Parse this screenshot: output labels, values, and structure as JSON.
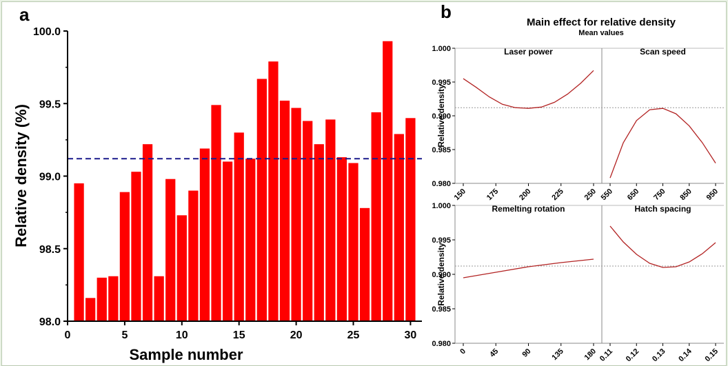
{
  "chart_data": [
    {
      "panel_label": "a",
      "type": "bar",
      "xlabel": "Sample number",
      "ylabel": "Relative density (%)",
      "xlim": [
        0,
        31
      ],
      "ylim": [
        98.0,
        100.0
      ],
      "xticks": [
        "0",
        "5",
        "10",
        "15",
        "20",
        "25",
        "30"
      ],
      "yticks": [
        "98.0",
        "98.5",
        "99.0",
        "99.5",
        "100.0"
      ],
      "x": [
        1,
        2,
        3,
        4,
        5,
        6,
        7,
        8,
        9,
        10,
        11,
        12,
        13,
        14,
        15,
        16,
        17,
        18,
        19,
        20,
        21,
        22,
        23,
        24,
        25,
        26,
        27,
        28,
        29,
        30
      ],
      "values": [
        98.95,
        98.16,
        98.3,
        98.31,
        98.89,
        99.03,
        99.22,
        98.31,
        98.98,
        98.73,
        98.9,
        99.19,
        99.49,
        99.1,
        99.3,
        99.12,
        99.67,
        99.79,
        99.52,
        99.47,
        99.38,
        99.22,
        99.39,
        99.13,
        99.09,
        98.78,
        99.44,
        99.93,
        99.29,
        99.4
      ],
      "mean_line": 99.12,
      "bar_color": "#ff0000",
      "mean_line_color": "#1a1a8c"
    },
    {
      "panel_label": "b",
      "type": "line",
      "title": "Main effect for relative density",
      "subtitle": "Mean values",
      "ylabel": "Relative density",
      "ylim": [
        0.98,
        1.0
      ],
      "yticks": [
        "0.980",
        "0.985",
        "0.990",
        "0.995",
        "1.000"
      ],
      "mean_level": 0.9912,
      "line_color": "#b22222",
      "panels": [
        {
          "name": "Laser power",
          "xlim": [
            150,
            250
          ],
          "xticks": [
            "150",
            "175",
            "200",
            "225",
            "250"
          ],
          "x": [
            150,
            160,
            170,
            180,
            190,
            200,
            210,
            220,
            230,
            240,
            250
          ],
          "y": [
            0.9955,
            0.9942,
            0.9928,
            0.9917,
            0.9912,
            0.9911,
            0.9913,
            0.992,
            0.9932,
            0.9948,
            0.9967
          ]
        },
        {
          "name": "Scan speed",
          "xlim": [
            550,
            950
          ],
          "xticks": [
            "550",
            "650",
            "750",
            "850",
            "950"
          ],
          "x": [
            550,
            600,
            650,
            700,
            750,
            800,
            850,
            900,
            950
          ],
          "y": [
            0.9808,
            0.986,
            0.9893,
            0.9909,
            0.9911,
            0.9903,
            0.9885,
            0.986,
            0.983
          ]
        },
        {
          "name": "Remelting rotation",
          "xlim": [
            0,
            180
          ],
          "xticks": [
            "0",
            "45",
            "90",
            "135",
            "180"
          ],
          "x": [
            0,
            45,
            90,
            135,
            180
          ],
          "y": [
            0.9895,
            0.9903,
            0.9911,
            0.9917,
            0.9922
          ]
        },
        {
          "name": "Hatch spacing",
          "xlim": [
            0.11,
            0.15
          ],
          "xticks": [
            "0.11",
            "0.12",
            "0.13",
            "0.14",
            "0.15"
          ],
          "x": [
            0.11,
            0.115,
            0.12,
            0.125,
            0.13,
            0.135,
            0.14,
            0.145,
            0.15
          ],
          "y": [
            0.997,
            0.9947,
            0.9929,
            0.9916,
            0.991,
            0.9911,
            0.9918,
            0.993,
            0.9946
          ]
        }
      ]
    }
  ]
}
